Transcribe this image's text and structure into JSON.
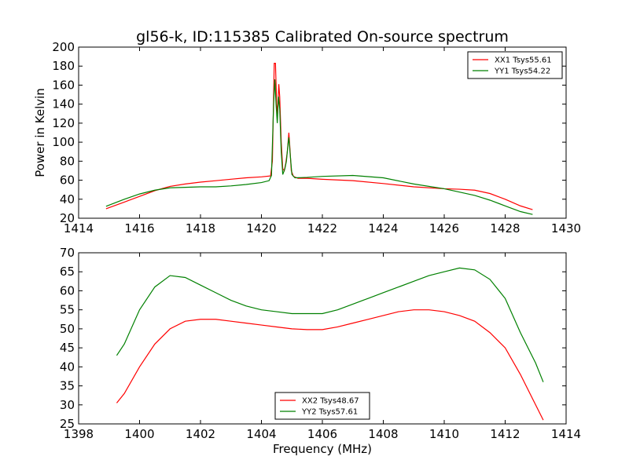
{
  "chart_data": [
    {
      "type": "line",
      "title": "gl56-k, ID:115385 Calibrated On-source spectrum",
      "xlabel": "",
      "ylabel": "Power in Kelvin",
      "xlim": [
        1414,
        1430
      ],
      "ylim": [
        20,
        200
      ],
      "xticks": [
        1414,
        1416,
        1418,
        1420,
        1422,
        1424,
        1426,
        1428,
        1430
      ],
      "yticks": [
        20,
        40,
        60,
        80,
        100,
        120,
        140,
        160,
        180,
        200
      ],
      "legend_position": "top-right",
      "series": [
        {
          "name": "XX1 Tsys55.61",
          "color": "#ff0000",
          "points": [
            [
              1414.9,
              30
            ],
            [
              1415.5,
              37
            ],
            [
              1416.0,
              43
            ],
            [
              1416.5,
              49
            ],
            [
              1417.0,
              53.5
            ],
            [
              1417.5,
              56
            ],
            [
              1418.0,
              58
            ],
            [
              1418.5,
              59.5
            ],
            [
              1419.0,
              61
            ],
            [
              1419.5,
              62.5
            ],
            [
              1420.0,
              63.5
            ],
            [
              1420.3,
              64.5
            ],
            [
              1420.36,
              80
            ],
            [
              1420.42,
              183
            ],
            [
              1420.46,
              183
            ],
            [
              1420.5,
              140
            ],
            [
              1420.53,
              130
            ],
            [
              1420.57,
              161
            ],
            [
              1420.6,
              148
            ],
            [
              1420.65,
              100
            ],
            [
              1420.7,
              72
            ],
            [
              1420.75,
              70
            ],
            [
              1420.8,
              78
            ],
            [
              1420.85,
              90
            ],
            [
              1420.9,
              110
            ],
            [
              1420.93,
              96
            ],
            [
              1420.98,
              70
            ],
            [
              1421.05,
              64
            ],
            [
              1421.2,
              62
            ],
            [
              1421.5,
              62
            ],
            [
              1422.0,
              61
            ],
            [
              1423.0,
              59.5
            ],
            [
              1424.0,
              56.5
            ],
            [
              1425.0,
              53
            ],
            [
              1426.0,
              51
            ],
            [
              1426.5,
              50.5
            ],
            [
              1427.0,
              49.5
            ],
            [
              1427.5,
              46
            ],
            [
              1428.0,
              40
            ],
            [
              1428.5,
              33
            ],
            [
              1428.9,
              29
            ]
          ]
        },
        {
          "name": "YY1 Tsys54.22",
          "color": "#008000",
          "points": [
            [
              1414.9,
              32.5
            ],
            [
              1415.5,
              40
            ],
            [
              1416.0,
              45.5
            ],
            [
              1416.5,
              49.5
            ],
            [
              1417.0,
              52
            ],
            [
              1417.5,
              52.5
            ],
            [
              1418.0,
              53
            ],
            [
              1418.5,
              53
            ],
            [
              1419.0,
              54
            ],
            [
              1419.5,
              55.5
            ],
            [
              1420.0,
              57.5
            ],
            [
              1420.25,
              59.5
            ],
            [
              1420.33,
              65
            ],
            [
              1420.4,
              140
            ],
            [
              1420.44,
              166
            ],
            [
              1420.48,
              140
            ],
            [
              1420.52,
              120
            ],
            [
              1420.56,
              148
            ],
            [
              1420.6,
              135
            ],
            [
              1420.65,
              90
            ],
            [
              1420.7,
              66
            ],
            [
              1420.77,
              72
            ],
            [
              1420.82,
              80
            ],
            [
              1420.87,
              97
            ],
            [
              1420.9,
              105
            ],
            [
              1420.95,
              85
            ],
            [
              1421.0,
              66
            ],
            [
              1421.1,
              62.5
            ],
            [
              1421.5,
              63
            ],
            [
              1422.0,
              64
            ],
            [
              1423.0,
              65
            ],
            [
              1424.0,
              62.5
            ],
            [
              1425.0,
              56
            ],
            [
              1426.0,
              51
            ],
            [
              1427.0,
              44
            ],
            [
              1427.5,
              39
            ],
            [
              1428.0,
              33
            ],
            [
              1428.5,
              27
            ],
            [
              1428.9,
              24
            ]
          ]
        }
      ]
    },
    {
      "type": "line",
      "title": "",
      "xlabel": "Frequency (MHz)",
      "ylabel": "",
      "xlim": [
        1398,
        1414
      ],
      "ylim": [
        25,
        70
      ],
      "xticks": [
        1398,
        1400,
        1402,
        1404,
        1406,
        1408,
        1410,
        1412,
        1414
      ],
      "yticks": [
        25,
        30,
        35,
        40,
        45,
        50,
        55,
        60,
        65,
        70
      ],
      "legend_position": "bottom-center",
      "series": [
        {
          "name": "XX2 Tsys48.67",
          "color": "#ff0000",
          "points": [
            [
              1399.25,
              30.5
            ],
            [
              1399.5,
              33
            ],
            [
              1400.0,
              40
            ],
            [
              1400.5,
              46
            ],
            [
              1401.0,
              50
            ],
            [
              1401.5,
              52
            ],
            [
              1402.0,
              52.5
            ],
            [
              1402.5,
              52.5
            ],
            [
              1403.0,
              52
            ],
            [
              1403.5,
              51.5
            ],
            [
              1404.0,
              51
            ],
            [
              1404.5,
              50.5
            ],
            [
              1405.0,
              50
            ],
            [
              1405.5,
              49.8
            ],
            [
              1406.0,
              49.8
            ],
            [
              1406.5,
              50.5
            ],
            [
              1407.0,
              51.5
            ],
            [
              1407.5,
              52.5
            ],
            [
              1408.0,
              53.5
            ],
            [
              1408.5,
              54.5
            ],
            [
              1409.0,
              55
            ],
            [
              1409.5,
              55
            ],
            [
              1410.0,
              54.5
            ],
            [
              1410.5,
              53.5
            ],
            [
              1411.0,
              52
            ],
            [
              1411.5,
              49
            ],
            [
              1412.0,
              45
            ],
            [
              1412.5,
              38
            ],
            [
              1413.0,
              30
            ],
            [
              1413.25,
              26
            ]
          ]
        },
        {
          "name": "YY2 Tsys57.61",
          "color": "#008000",
          "points": [
            [
              1399.25,
              43
            ],
            [
              1399.5,
              46
            ],
            [
              1400.0,
              55
            ],
            [
              1400.5,
              61
            ],
            [
              1401.0,
              64
            ],
            [
              1401.5,
              63.5
            ],
            [
              1402.0,
              61.5
            ],
            [
              1402.5,
              59.5
            ],
            [
              1403.0,
              57.5
            ],
            [
              1403.5,
              56
            ],
            [
              1404.0,
              55
            ],
            [
              1404.5,
              54.5
            ],
            [
              1405.0,
              54
            ],
            [
              1405.5,
              54
            ],
            [
              1406.0,
              54
            ],
            [
              1406.5,
              55
            ],
            [
              1407.0,
              56.5
            ],
            [
              1407.5,
              58
            ],
            [
              1408.0,
              59.5
            ],
            [
              1408.5,
              61
            ],
            [
              1409.0,
              62.5
            ],
            [
              1409.5,
              64
            ],
            [
              1410.0,
              65
            ],
            [
              1410.5,
              66
            ],
            [
              1411.0,
              65.5
            ],
            [
              1411.5,
              63
            ],
            [
              1412.0,
              58
            ],
            [
              1412.5,
              49
            ],
            [
              1413.0,
              41
            ],
            [
              1413.25,
              36
            ]
          ]
        }
      ]
    }
  ]
}
